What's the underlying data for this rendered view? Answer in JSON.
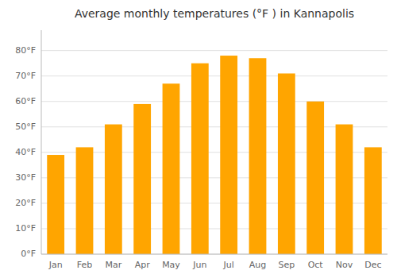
{
  "chart_data": {
    "type": "bar",
    "title": "Average monthly temperatures (°F ) in Kannapolis",
    "categories": [
      "Jan",
      "Feb",
      "Mar",
      "Apr",
      "May",
      "Jun",
      "Jul",
      "Aug",
      "Sep",
      "Oct",
      "Nov",
      "Dec"
    ],
    "values": [
      39,
      42,
      51,
      59,
      67,
      75,
      78,
      77,
      71,
      60,
      51,
      42
    ],
    "color": "#FFA500",
    "ylim": [
      0,
      88
    ],
    "yticks": [
      {
        "value": 0,
        "label": "0°F"
      },
      {
        "value": 10,
        "label": "10°F"
      },
      {
        "value": 20,
        "label": "20°F"
      },
      {
        "value": 30,
        "label": "30°F"
      },
      {
        "value": 40,
        "label": "40°F"
      },
      {
        "value": 50,
        "label": "50°F"
      },
      {
        "value": 60,
        "label": "60°F"
      },
      {
        "value": 70,
        "label": "70°F"
      },
      {
        "value": 80,
        "label": "80°F"
      }
    ],
    "grid": true
  }
}
